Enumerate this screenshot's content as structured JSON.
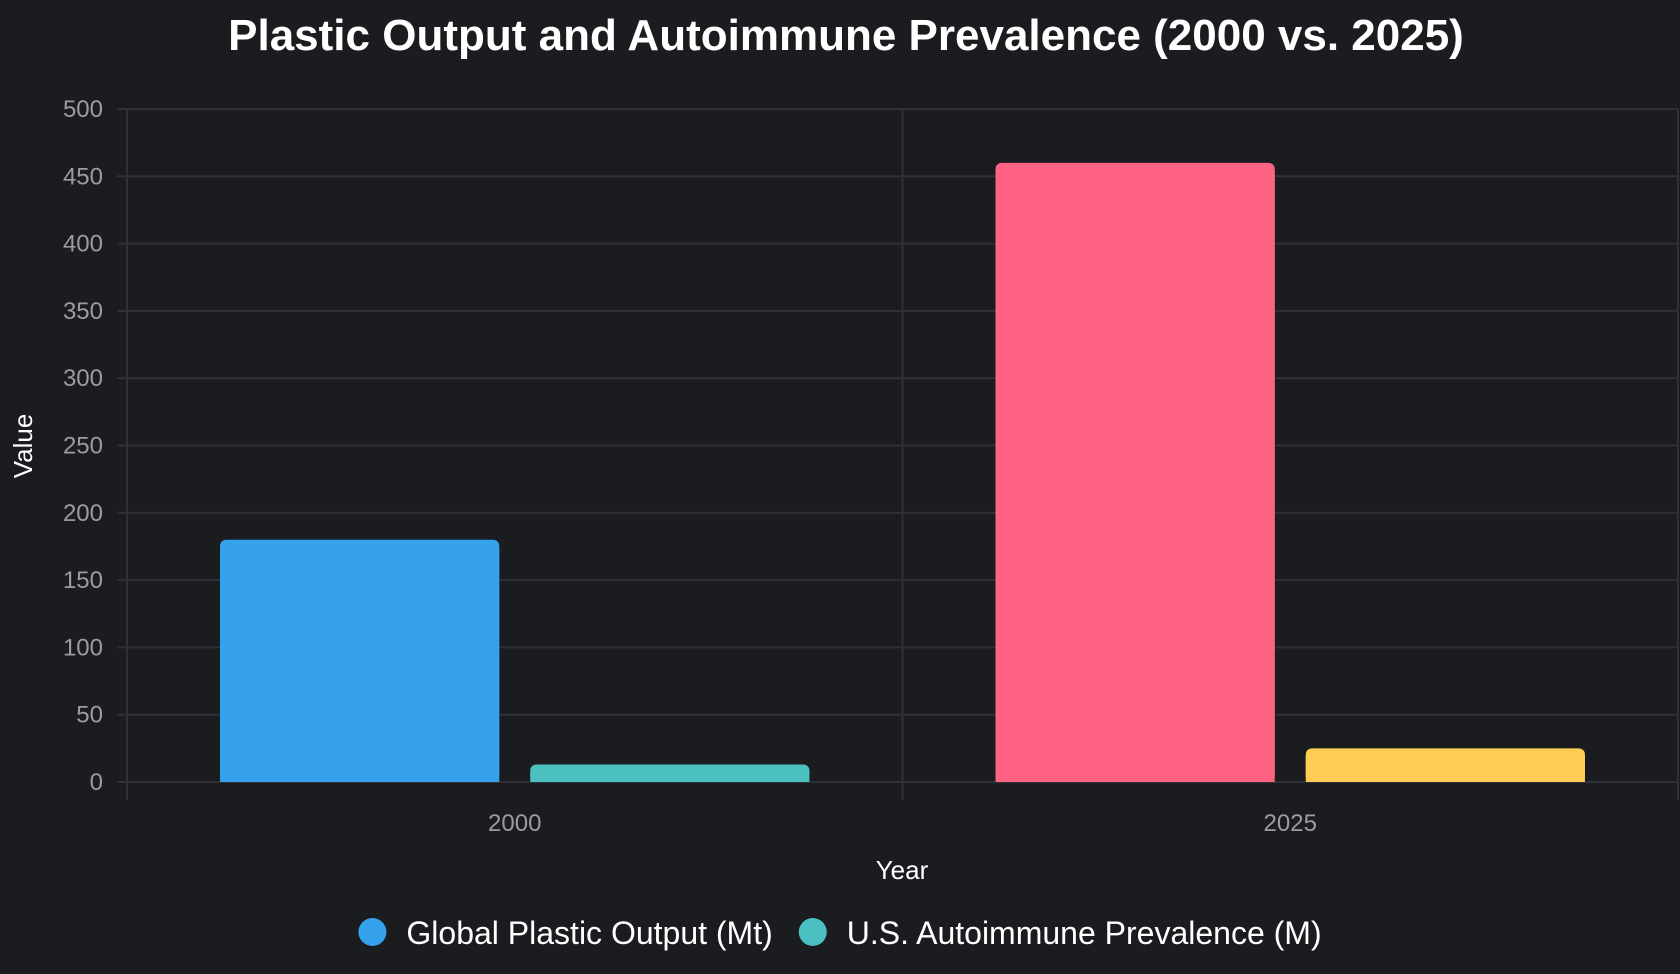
{
  "chart_data": {
    "type": "bar",
    "title": "Plastic Output and Autoimmune Prevalence (2000 vs. 2025)",
    "xlabel": "Year",
    "ylabel": "Value",
    "categories": [
      "2000",
      "2025"
    ],
    "ylim": [
      0,
      500
    ],
    "yticks": [
      0,
      50,
      100,
      150,
      200,
      250,
      300,
      350,
      400,
      450,
      500
    ],
    "grid": true,
    "legend_position": "bottom",
    "series": [
      {
        "name": "Global Plastic Output (Mt)",
        "values": [
          180,
          460
        ],
        "bar_colors": [
          "#36a2eb",
          "#ff6384"
        ]
      },
      {
        "name": "U.S. Autoimmune Prevalence (M)",
        "values": [
          13,
          25
        ],
        "bar_colors": [
          "#4bc0c0",
          "#ffcd56"
        ]
      }
    ],
    "legend": [
      {
        "label": "Global Plastic Output (Mt)",
        "color": "#36a2eb"
      },
      {
        "label": "U.S. Autoimmune Prevalence (M)",
        "color": "#4bc0c0"
      }
    ]
  }
}
